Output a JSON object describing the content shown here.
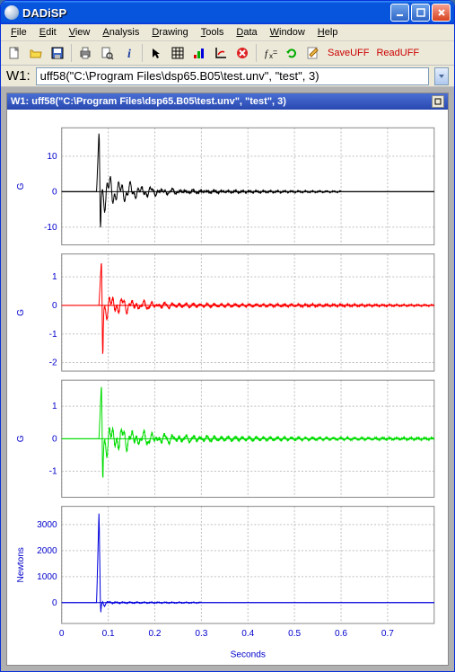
{
  "app": {
    "title": "DADiSP"
  },
  "menu": {
    "items": [
      "File",
      "Edit",
      "View",
      "Analysis",
      "Drawing",
      "Tools",
      "Data",
      "Window",
      "Help"
    ]
  },
  "toolbar": {
    "save_uff": "SaveUFF",
    "read_uff": "ReadUFF"
  },
  "formula": {
    "win_label": "W1:",
    "value": "uff58(\"C:\\Program Files\\dsp65.B05\\test.unv\", \"test\", 3)"
  },
  "plot": {
    "title": "W1: uff58(\"C:\\Program Files\\dsp65.B05\\test.unv\", \"test\", 3)",
    "xlabel": "Seconds",
    "background": "#ffffff",
    "grid_color": "#c0c0c0",
    "axis_color": "#000000",
    "label_color": "#0000cc",
    "label_fontsize": 10,
    "tick_fontsize": 10,
    "xlim": [
      0,
      0.8
    ],
    "xticks": [
      0,
      0.1,
      0.2,
      0.3,
      0.4,
      0.5,
      0.6,
      0.7
    ],
    "panels": [
      {
        "ylabel": "G",
        "color": "#000000",
        "ylim": [
          -15,
          18
        ],
        "yticks": [
          -10,
          0,
          10
        ],
        "signal": "impulse1"
      },
      {
        "ylabel": "G",
        "color": "#ff0000",
        "ylim": [
          -2.3,
          1.8
        ],
        "yticks": [
          -2,
          -1,
          0,
          1
        ],
        "signal": "impulse2"
      },
      {
        "ylabel": "G",
        "color": "#00dd00",
        "ylim": [
          -1.8,
          1.8
        ],
        "yticks": [
          -1,
          0,
          1
        ],
        "signal": "impulse3"
      },
      {
        "ylabel": "Newtons",
        "color": "#0000dd",
        "ylim": [
          -800,
          3700
        ],
        "yticks": [
          0,
          1000,
          2000,
          3000
        ],
        "signal": "impulse4"
      }
    ],
    "signals": {
      "impulse1": {
        "t_peak": 0.08,
        "peak_pos": 17,
        "peak_neg": -13,
        "decay": 15,
        "tail_amp": 0.4,
        "tail_end": 0.6
      },
      "impulse2": {
        "t_peak": 0.085,
        "peak_pos": 1.5,
        "peak_neg": -2.1,
        "decay": 18,
        "tail_amp": 0.08,
        "tail_end": 0.8
      },
      "impulse3": {
        "t_peak": 0.085,
        "peak_pos": 1.6,
        "peak_neg": -1.6,
        "decay": 14,
        "tail_amp": 0.1,
        "tail_end": 0.8
      },
      "impulse4": {
        "t_peak": 0.08,
        "peak_pos": 3500,
        "peak_neg": -500,
        "decay": 200,
        "tail_amp": 20,
        "tail_end": 0.3
      }
    }
  }
}
